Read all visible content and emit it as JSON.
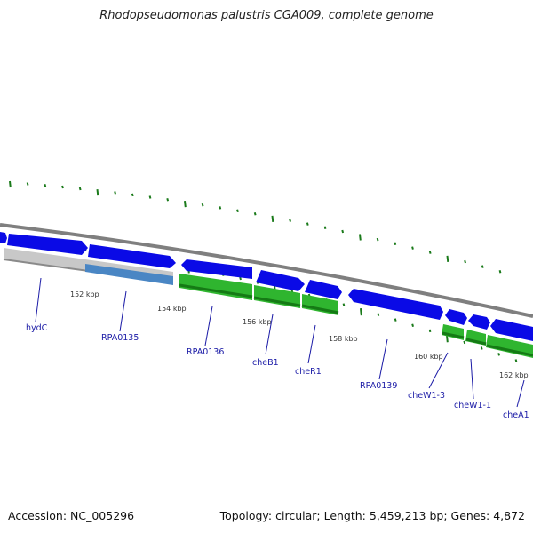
{
  "title": "Rhodopseudomonas palustris CGA009, complete genome",
  "footer": {
    "accession": "Accession: NC_005296",
    "summary": "Topology: circular; Length: 5,459,213 bp; Genes: 4,872"
  },
  "colors": {
    "forward_gene": "#0a0ae6",
    "cds_feature": "#2fb52f",
    "pseudo_feature": "#c8c8c8",
    "misc_feature": "#4a86c4",
    "backbone": "#7f7f7f",
    "tick_mark": "#1a7a1a",
    "label_text": "#1a1aa6",
    "kbp_text": "#333333"
  },
  "scale_labels": [
    "152 kbp",
    "154 kbp",
    "156 kbp",
    "158 kbp",
    "160 kbp",
    "162 kbp"
  ],
  "gene_labels": [
    "hydC",
    "RPA0135",
    "RPA0136",
    "cheB1",
    "cheR1",
    "RPA0139",
    "cheW1-3",
    "cheW1-1",
    "cheA1"
  ]
}
